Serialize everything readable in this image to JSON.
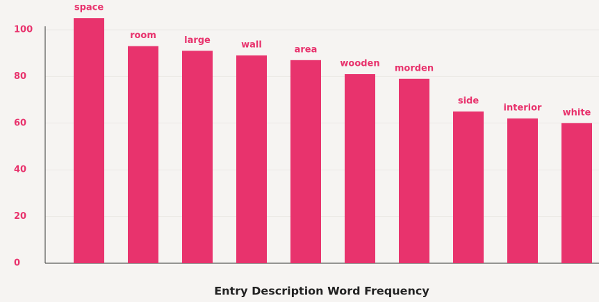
{
  "chart_data": {
    "type": "bar",
    "title": "Entry Description Word Frequency",
    "categories": [
      "space",
      "room",
      "large",
      "wall",
      "area",
      "wooden",
      "morden",
      "side",
      "interior",
      "white"
    ],
    "values": [
      105,
      93,
      91,
      89,
      87,
      81,
      79,
      65,
      62,
      60
    ],
    "color": "#e8336d",
    "ylim": [
      0,
      100
    ],
    "yticks": [
      0,
      20,
      40,
      60,
      80,
      100
    ],
    "grid": true
  }
}
